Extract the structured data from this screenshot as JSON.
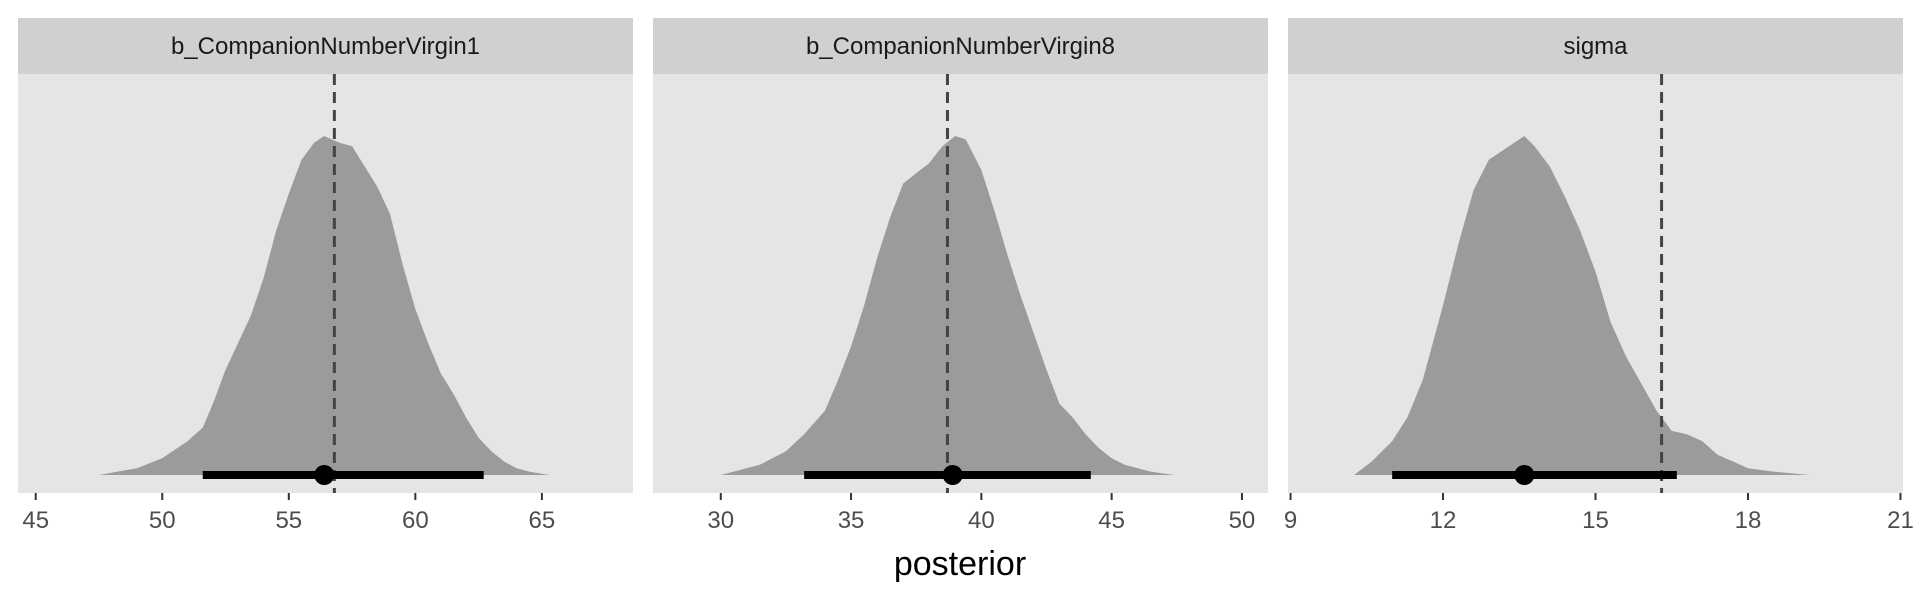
{
  "chart_data": {
    "type": "area",
    "xlabel": "posterior",
    "ylabel": "",
    "grid": false,
    "colors": {
      "panel_background": "#e5e5e5",
      "strip_background": "#d0d0d0",
      "density_fill": "#9b9b9b",
      "interval": "#000000",
      "reference_line": "#444444",
      "tick_text": "#4d4d4d"
    },
    "panels": [
      {
        "title": "b_CompanionNumberVirgin1",
        "xlim": [
          44.3,
          68.6
        ],
        "ticks": [
          45,
          50,
          55,
          60,
          65
        ],
        "reference_line": 56.8,
        "point_estimate": 56.4,
        "interval": [
          51.6,
          62.7
        ],
        "density": {
          "x": [
            47.5,
            49.0,
            50.0,
            51.0,
            51.6,
            52.0,
            52.5,
            53.0,
            53.5,
            54.0,
            54.5,
            55.0,
            55.5,
            56.0,
            56.4,
            57.0,
            57.5,
            58.0,
            58.5,
            59.0,
            59.5,
            60.0,
            60.5,
            61.0,
            61.5,
            62.0,
            62.5,
            63.0,
            63.5,
            64.0,
            64.5,
            65.3
          ],
          "y": [
            0.0,
            0.02,
            0.05,
            0.1,
            0.14,
            0.21,
            0.31,
            0.39,
            0.47,
            0.58,
            0.72,
            0.83,
            0.93,
            0.98,
            1.0,
            0.98,
            0.97,
            0.91,
            0.85,
            0.77,
            0.62,
            0.49,
            0.39,
            0.3,
            0.24,
            0.17,
            0.11,
            0.07,
            0.04,
            0.02,
            0.01,
            0.0
          ]
        }
      },
      {
        "title": "b_CompanionNumberVirgin8",
        "xlim": [
          27.4,
          51.0
        ],
        "ticks": [
          30,
          35,
          40,
          45,
          50
        ],
        "reference_line": 38.7,
        "point_estimate": 38.9,
        "interval": [
          33.2,
          44.2
        ],
        "density": {
          "x": [
            30.0,
            31.5,
            32.5,
            33.2,
            34.0,
            34.5,
            35.0,
            35.5,
            36.0,
            36.5,
            37.0,
            37.5,
            38.0,
            38.5,
            39.0,
            39.4,
            40.0,
            40.5,
            41.0,
            41.5,
            42.0,
            42.5,
            43.0,
            43.5,
            44.0,
            44.5,
            45.0,
            45.5,
            46.5,
            47.4
          ],
          "y": [
            0.0,
            0.03,
            0.07,
            0.12,
            0.19,
            0.28,
            0.38,
            0.5,
            0.64,
            0.76,
            0.86,
            0.89,
            0.92,
            0.97,
            1.0,
            0.99,
            0.9,
            0.78,
            0.65,
            0.53,
            0.42,
            0.31,
            0.21,
            0.17,
            0.12,
            0.08,
            0.05,
            0.03,
            0.01,
            0.0
          ]
        }
      },
      {
        "title": "sigma",
        "xlim": [
          8.95,
          21.05
        ],
        "ticks": [
          9,
          12,
          15,
          18,
          21
        ],
        "reference_line": 16.3,
        "point_estimate": 13.6,
        "interval": [
          11.0,
          16.6
        ],
        "density": {
          "x": [
            10.25,
            10.6,
            11.0,
            11.3,
            11.6,
            12.0,
            12.3,
            12.6,
            12.9,
            13.2,
            13.5,
            13.6,
            13.8,
            14.1,
            14.4,
            14.7,
            15.0,
            15.3,
            15.6,
            15.9,
            16.2,
            16.5,
            16.8,
            17.1,
            17.4,
            17.7,
            18.0,
            18.5,
            19.2
          ],
          "y": [
            0.0,
            0.04,
            0.1,
            0.17,
            0.28,
            0.5,
            0.68,
            0.84,
            0.93,
            0.96,
            0.99,
            1.0,
            0.97,
            0.91,
            0.82,
            0.72,
            0.6,
            0.45,
            0.35,
            0.27,
            0.19,
            0.13,
            0.12,
            0.1,
            0.06,
            0.04,
            0.02,
            0.01,
            0.0
          ]
        }
      }
    ]
  }
}
